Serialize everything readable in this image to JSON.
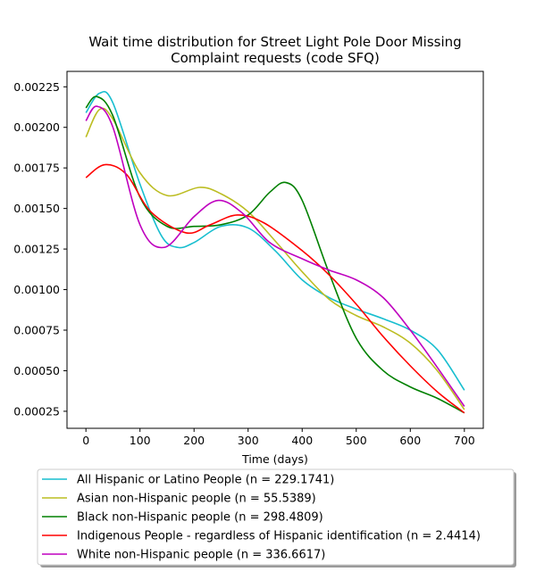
{
  "chart_data": {
    "type": "line",
    "title_lines": [
      "Wait time distribution  for Street Light Pole Door Missing",
      "Complaint  requests (code SFQ)"
    ],
    "xlabel": "Time (days)",
    "ylabel": "",
    "xlim": [
      -35,
      735
    ],
    "ylim": [
      0.000145,
      0.002345
    ],
    "x_ticks": [
      0,
      100,
      200,
      300,
      400,
      500,
      600,
      700
    ],
    "y_ticks": [
      0.00025,
      0.0005,
      0.00075,
      0.001,
      0.00125,
      0.0015,
      0.00175,
      0.002,
      0.00225
    ],
    "y_tick_labels": [
      "0.00025",
      "0.00050",
      "0.00075",
      "0.00100",
      "0.00125",
      "0.00150",
      "0.00175",
      "0.00200",
      "0.00225"
    ],
    "x_tick_labels": [
      "0",
      "100",
      "200",
      "300",
      "400",
      "500",
      "600",
      "700"
    ],
    "legend_placement": "below",
    "grid": false,
    "series": [
      {
        "name": "All Hispanic or Latino People (n = 229.1741)",
        "color": "#17becf",
        "x": [
          0,
          25,
          50,
          100,
          140,
          170,
          200,
          250,
          300,
          350,
          400,
          450,
          500,
          550,
          600,
          650,
          700
        ],
        "y": [
          0.00209,
          0.00221,
          0.00215,
          0.00165,
          0.00133,
          0.00126,
          0.00129,
          0.00139,
          0.00138,
          0.00124,
          0.00106,
          0.00095,
          0.00088,
          0.00082,
          0.00075,
          0.00063,
          0.00038
        ]
      },
      {
        "name": "Asian non-Hispanic people (n = 55.5389)",
        "color": "#bcbd22",
        "x": [
          0,
          25,
          50,
          100,
          150,
          210,
          250,
          300,
          350,
          400,
          450,
          500,
          550,
          600,
          650,
          700
        ],
        "y": [
          0.00194,
          0.00211,
          0.00205,
          0.00172,
          0.00158,
          0.00163,
          0.00159,
          0.00148,
          0.0013,
          0.00111,
          0.00094,
          0.00084,
          0.00077,
          0.00067,
          0.0005,
          0.00026
        ]
      },
      {
        "name": "Black non-Hispanic people (n = 298.4809)",
        "color": "#008000",
        "x": [
          0,
          20,
          50,
          100,
          150,
          200,
          250,
          300,
          340,
          370,
          400,
          450,
          500,
          550,
          600,
          650,
          700
        ],
        "y": [
          0.00212,
          0.00219,
          0.00207,
          0.00157,
          0.00139,
          0.00139,
          0.0014,
          0.00146,
          0.0016,
          0.00166,
          0.00155,
          0.0011,
          0.0007,
          0.0005,
          0.0004,
          0.00033,
          0.00024
        ]
      },
      {
        "name": "Indigenous People - regardless of Hispanic identification (n = 2.4414)",
        "color": "#ff0000",
        "x": [
          0,
          35,
          75,
          120,
          185,
          230,
          280,
          330,
          400,
          450,
          500,
          550,
          600,
          650,
          700
        ],
        "y": [
          0.00169,
          0.00177,
          0.00171,
          0.00148,
          0.00135,
          0.0014,
          0.00146,
          0.00141,
          0.00124,
          0.00109,
          0.00091,
          0.00071,
          0.00053,
          0.00037,
          0.00024
        ]
      },
      {
        "name": "White non-Hispanic people (n = 336.6617)",
        "color": "#bf00bf",
        "x": [
          0,
          20,
          50,
          100,
          145,
          200,
          245,
          290,
          340,
          400,
          450,
          500,
          550,
          600,
          650,
          700
        ],
        "y": [
          0.00204,
          0.00213,
          0.002,
          0.0014,
          0.00126,
          0.00145,
          0.00155,
          0.00147,
          0.00129,
          0.00119,
          0.00112,
          0.00106,
          0.00095,
          0.00075,
          0.00052,
          0.00028
        ]
      }
    ]
  }
}
